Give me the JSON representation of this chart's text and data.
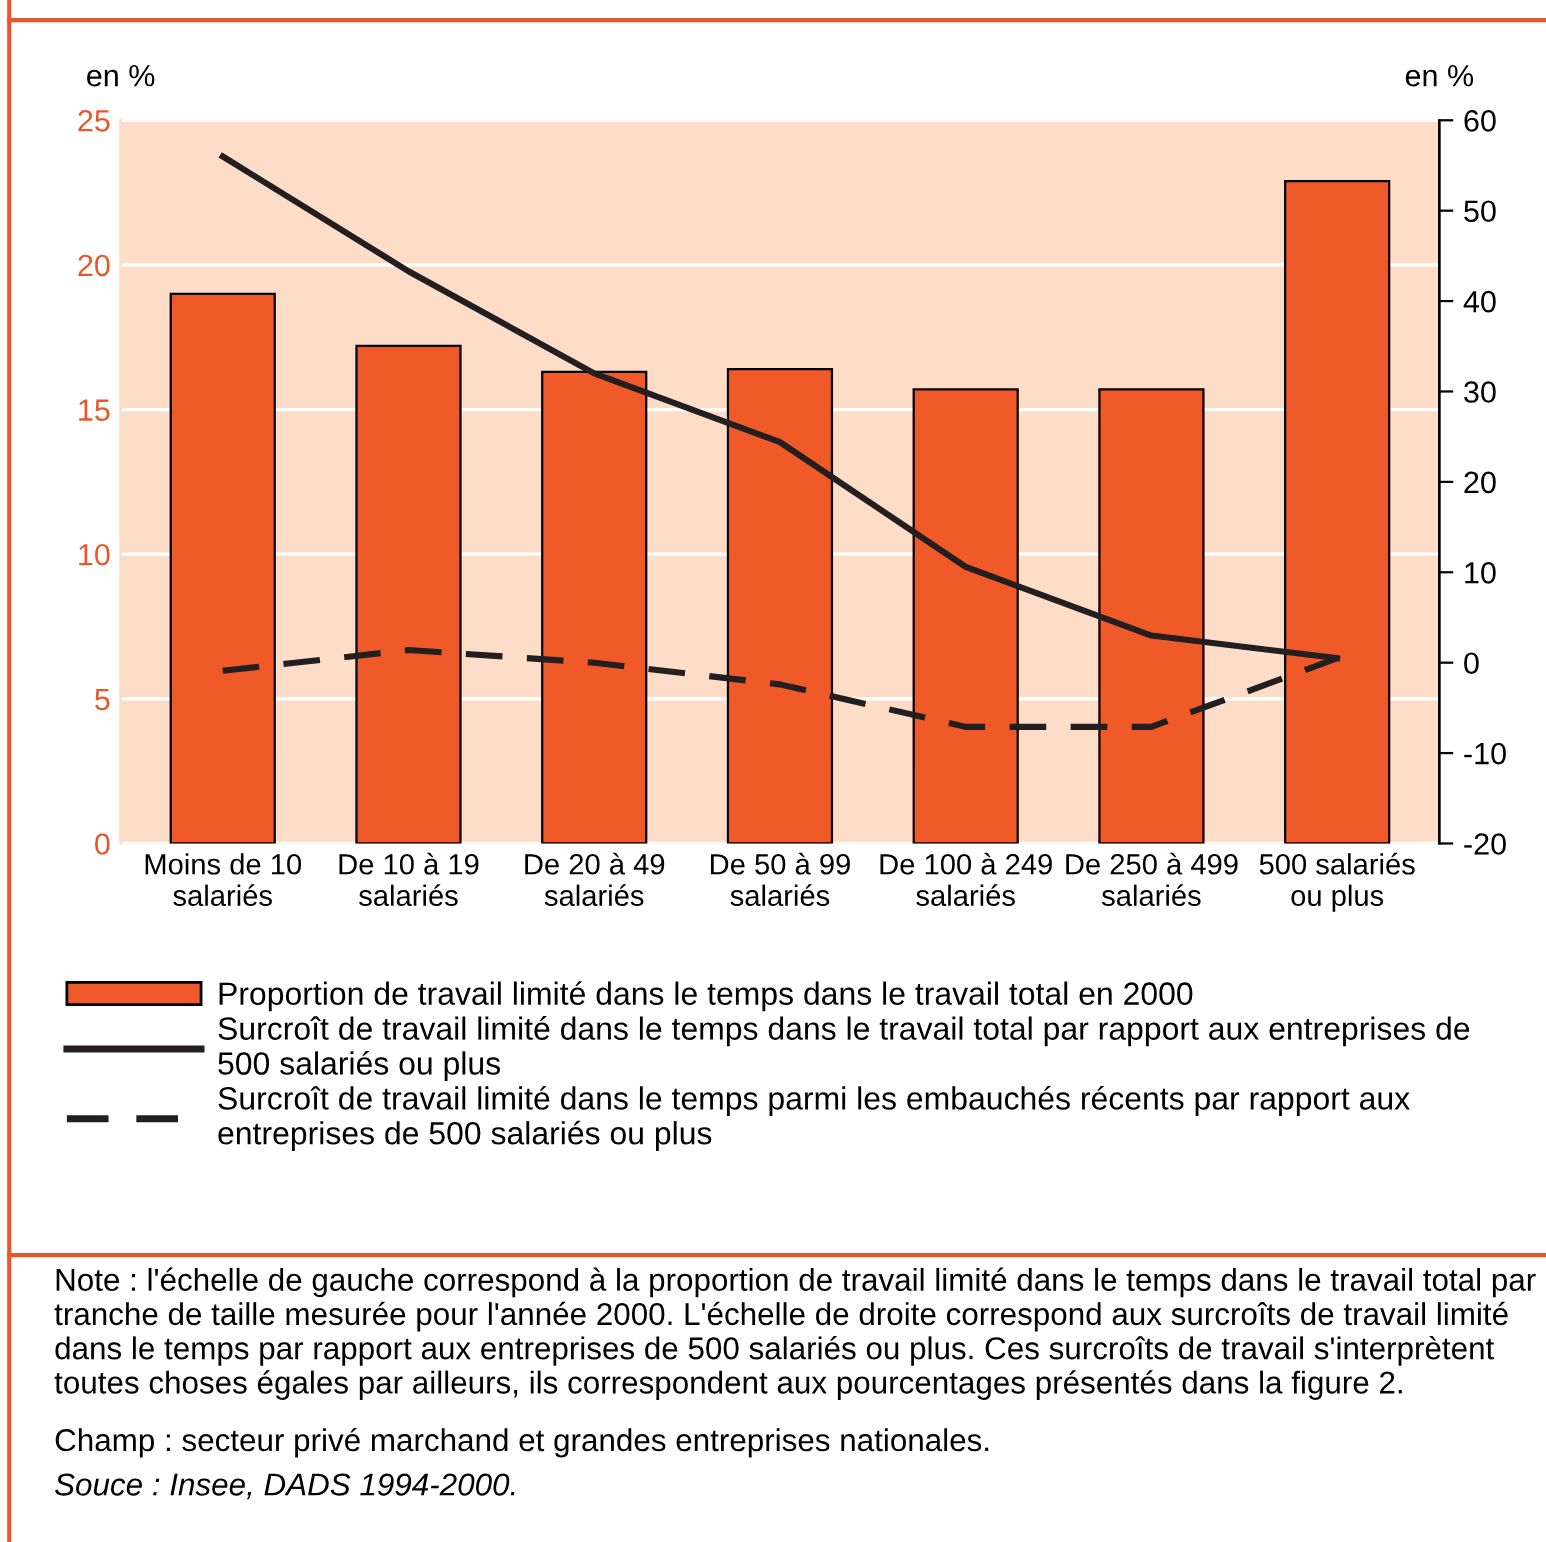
{
  "chart_data": {
    "type": "bar",
    "categories": [
      "Moins de 10 salariés",
      "De 10 à 19 salariés",
      "De 20 à 49 salariés",
      "De 50 à 99 salariés",
      "De 100 à 249 salariés",
      "De 250 à 499 salariés",
      "500 salariés ou plus"
    ],
    "series": [
      {
        "name": "Proportion de travail limité dans le temps dans le travail total en 2000",
        "type": "bar",
        "color": "#f05a28",
        "values": [
          19.0,
          17.2,
          16.3,
          16.4,
          15.7,
          15.7,
          22.9
        ]
      },
      {
        "name": "Surcroît de travail limité dans le temps dans le travail total par rapport aux entreprises de 500 salariés ou plus",
        "type": "line",
        "axis": "y2",
        "line_style": "solid",
        "color": "#231f20",
        "values": [
          56,
          43.3,
          32,
          24.4,
          10.6,
          3.0,
          0.5
        ]
      },
      {
        "name": "Surcroît de travail limité dans le temps parmi les embauchés récents par rapport aux entreprises de 500 salariés ou plus",
        "type": "line",
        "axis": "y2",
        "line_style": "dashed",
        "color": "#231f20",
        "values": [
          -0.9,
          1.4,
          0,
          -2.4,
          -7.1,
          -7.1,
          0.5
        ]
      }
    ],
    "ylabel": "en %",
    "y2label": "en %",
    "ylim": [
      0,
      25
    ],
    "yticks": [
      0,
      5,
      10,
      15,
      20,
      25
    ],
    "y2lim": [
      -20,
      60
    ],
    "y2ticks": [
      -20,
      -10,
      0,
      10,
      20,
      30,
      40,
      50,
      60
    ],
    "grid": "y",
    "legend": "bottom",
    "annotations": [
      "Note : l'échelle de gauche correspond à la proportion de travail limité dans le temps dans le travail total par tranche de taille mesurée pour l'année 2000. L'échelle de droite correspond aux surcroîts de travail limité dans le temps par rapport aux entreprises de 500 salariés ou plus. Ces surcroîts de travail s'interprètent toutes choses égales par ailleurs, ils correspondent aux pourcentages présentés dans la figure 2.",
      "Champ : secteur privé marchand et grandes entreprises nationales.",
      "Souce : Insee, DADS 1994-2000."
    ]
  }
}
